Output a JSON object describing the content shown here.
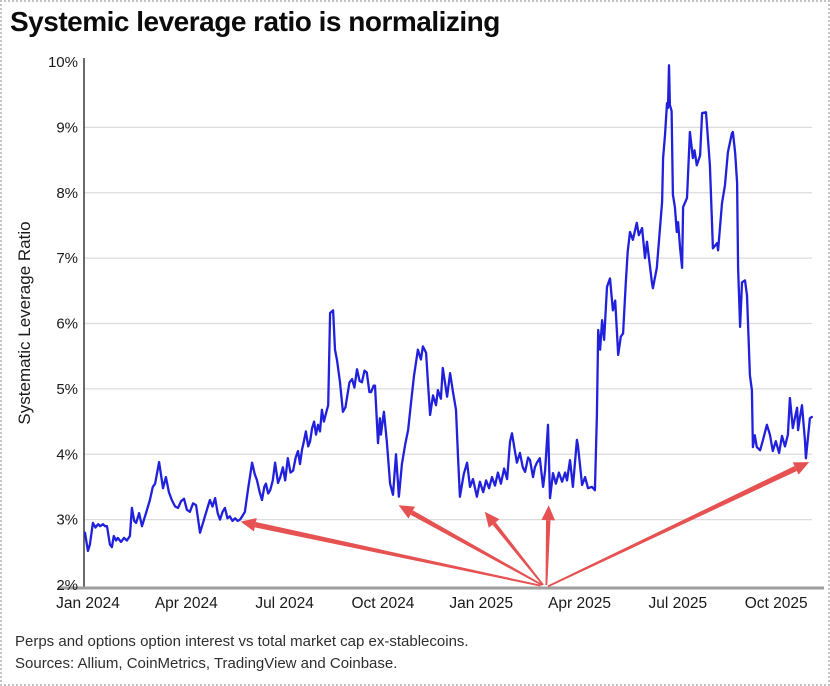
{
  "title": "Systemic leverage ratio is normalizing",
  "footnotes": [
    "Perps and options option interest vs total market cap ex-stablecoins.",
    "Sources: Allium, CoinMetrics, TradingView and Coinbase."
  ],
  "colors": {
    "line": "#2020dd",
    "arrow": "#e65151",
    "grid": "#dcdcdc",
    "y_axis": "#3a3a3a",
    "x_axis": "#9e9e9e",
    "tick_text": "#1a1a1a"
  },
  "chart_data": {
    "type": "line",
    "title": "Systemic leverage ratio is normalizing",
    "xlabel": "",
    "ylabel": "Systematic Leverage Ratio",
    "x_unit": "months since Jan 2024",
    "ylim": [
      2,
      10
    ],
    "xlim": [
      0,
      22.3
    ],
    "grid": "horizontal",
    "legend": "none",
    "y_ticks": [
      {
        "v": 2,
        "label": "2%"
      },
      {
        "v": 3,
        "label": "3%"
      },
      {
        "v": 4,
        "label": "4%"
      },
      {
        "v": 5,
        "label": "5%"
      },
      {
        "v": 6,
        "label": "6%"
      },
      {
        "v": 7,
        "label": "7%"
      },
      {
        "v": 8,
        "label": "8%"
      },
      {
        "v": 9,
        "label": "9%"
      },
      {
        "v": 10,
        "label": "10%"
      }
    ],
    "gridline_values": [
      3,
      4,
      5,
      6,
      7,
      8,
      9
    ],
    "x_ticks": [
      {
        "t": 0,
        "label": "Jan 2024"
      },
      {
        "t": 3,
        "label": "Apr 2024"
      },
      {
        "t": 6,
        "label": "Jul 2024"
      },
      {
        "t": 9,
        "label": "Oct 2024"
      },
      {
        "t": 12,
        "label": "Jan 2025"
      },
      {
        "t": 15,
        "label": "Apr 2025"
      },
      {
        "t": 18,
        "label": "Jul 2025"
      },
      {
        "t": 21,
        "label": "Oct 2025"
      }
    ],
    "series": [
      {
        "name": "Systematic Leverage Ratio",
        "points": [
          [
            0,
            2.8
          ],
          [
            0.09,
            2.52
          ],
          [
            0.15,
            2.62
          ],
          [
            0.24,
            2.95
          ],
          [
            0.32,
            2.88
          ],
          [
            0.4,
            2.93
          ],
          [
            0.46,
            2.9
          ],
          [
            0.55,
            2.93
          ],
          [
            0.61,
            2.9
          ],
          [
            0.67,
            2.9
          ],
          [
            0.76,
            2.62
          ],
          [
            0.82,
            2.58
          ],
          [
            0.88,
            2.75
          ],
          [
            0.95,
            2.68
          ],
          [
            1,
            2.72
          ],
          [
            1.1,
            2.66
          ],
          [
            1.19,
            2.72
          ],
          [
            1.28,
            2.68
          ],
          [
            1.37,
            2.75
          ],
          [
            1.43,
            3.18
          ],
          [
            1.5,
            2.98
          ],
          [
            1.56,
            2.95
          ],
          [
            1.65,
            3.1
          ],
          [
            1.74,
            2.9
          ],
          [
            1.8,
            3
          ],
          [
            1.86,
            3.1
          ],
          [
            1.98,
            3.3
          ],
          [
            2.07,
            3.5
          ],
          [
            2.14,
            3.55
          ],
          [
            2.26,
            3.88
          ],
          [
            2.38,
            3.48
          ],
          [
            2.47,
            3.65
          ],
          [
            2.56,
            3.42
          ],
          [
            2.65,
            3.3
          ],
          [
            2.75,
            3.2
          ],
          [
            2.84,
            3.18
          ],
          [
            2.93,
            3.28
          ],
          [
            3.02,
            3.32
          ],
          [
            3.11,
            3.15
          ],
          [
            3.2,
            3.12
          ],
          [
            3.3,
            3.25
          ],
          [
            3.39,
            3.22
          ],
          [
            3.51,
            2.8
          ],
          [
            3.6,
            2.95
          ],
          [
            3.66,
            3.05
          ],
          [
            3.75,
            3.2
          ],
          [
            3.81,
            3.3
          ],
          [
            3.89,
            3.2
          ],
          [
            3.97,
            3.33
          ],
          [
            4.05,
            3.1
          ],
          [
            4.12,
            3
          ],
          [
            4.2,
            3.12
          ],
          [
            4.27,
            3.18
          ],
          [
            4.35,
            3.02
          ],
          [
            4.42,
            3.05
          ],
          [
            4.5,
            2.98
          ],
          [
            4.58,
            3.02
          ],
          [
            4.66,
            2.98
          ],
          [
            4.73,
            3
          ],
          [
            4.81,
            3.06
          ],
          [
            4.88,
            3.12
          ],
          [
            4.97,
            3.45
          ],
          [
            5.1,
            3.87
          ],
          [
            5.18,
            3.7
          ],
          [
            5.25,
            3.6
          ],
          [
            5.33,
            3.42
          ],
          [
            5.4,
            3.3
          ],
          [
            5.47,
            3.5
          ],
          [
            5.52,
            3.55
          ],
          [
            5.59,
            3.4
          ],
          [
            5.65,
            3.45
          ],
          [
            5.73,
            3.6
          ],
          [
            5.8,
            3.87
          ],
          [
            5.89,
            3.56
          ],
          [
            5.96,
            3.65
          ],
          [
            6.04,
            3.8
          ],
          [
            6.11,
            3.6
          ],
          [
            6.19,
            3.94
          ],
          [
            6.27,
            3.72
          ],
          [
            6.35,
            3.75
          ],
          [
            6.43,
            3.95
          ],
          [
            6.5,
            4.05
          ],
          [
            6.56,
            3.85
          ],
          [
            6.62,
            4.06
          ],
          [
            6.68,
            4.2
          ],
          [
            6.74,
            4.35
          ],
          [
            6.81,
            4.12
          ],
          [
            6.87,
            4.2
          ],
          [
            6.93,
            4.4
          ],
          [
            6.99,
            4.5
          ],
          [
            7.05,
            4.3
          ],
          [
            7.11,
            4.45
          ],
          [
            7.17,
            4.35
          ],
          [
            7.23,
            4.68
          ],
          [
            7.29,
            4.5
          ],
          [
            7.35,
            4.62
          ],
          [
            7.42,
            4.75
          ],
          [
            7.48,
            6.16
          ],
          [
            7.57,
            6.2
          ],
          [
            7.63,
            5.6
          ],
          [
            7.69,
            5.44
          ],
          [
            7.78,
            5.1
          ],
          [
            7.87,
            4.65
          ],
          [
            7.95,
            4.72
          ],
          [
            7.99,
            4.85
          ],
          [
            8.07,
            5.1
          ],
          [
            8.15,
            5.15
          ],
          [
            8.22,
            5.02
          ],
          [
            8.3,
            5.3
          ],
          [
            8.38,
            5.12
          ],
          [
            8.45,
            5.1
          ],
          [
            8.53,
            5.28
          ],
          [
            8.6,
            5.25
          ],
          [
            8.68,
            4.95
          ],
          [
            8.73,
            4.95
          ],
          [
            8.81,
            5.05
          ],
          [
            8.85,
            5.05
          ],
          [
            8.94,
            4.17
          ],
          [
            9,
            4.55
          ],
          [
            9.03,
            4.3
          ],
          [
            9.12,
            4.65
          ],
          [
            9.21,
            4.2
          ],
          [
            9.31,
            3.55
          ],
          [
            9.4,
            3.38
          ],
          [
            9.49,
            4
          ],
          [
            9.58,
            3.35
          ],
          [
            9.67,
            3.85
          ],
          [
            9.77,
            4.15
          ],
          [
            9.86,
            4.37
          ],
          [
            9.95,
            4.8
          ],
          [
            10.04,
            5.2
          ],
          [
            10.16,
            5.6
          ],
          [
            10.25,
            5.45
          ],
          [
            10.31,
            5.65
          ],
          [
            10.41,
            5.55
          ],
          [
            10.47,
            5.06
          ],
          [
            10.53,
            4.6
          ],
          [
            10.62,
            4.9
          ],
          [
            10.71,
            4.75
          ],
          [
            10.77,
            4.98
          ],
          [
            10.86,
            4.85
          ],
          [
            10.92,
            5.32
          ],
          [
            11.05,
            4.88
          ],
          [
            11.14,
            5.24
          ],
          [
            11.23,
            4.95
          ],
          [
            11.32,
            4.68
          ],
          [
            11.38,
            4
          ],
          [
            11.44,
            3.35
          ],
          [
            11.56,
            3.7
          ],
          [
            11.66,
            3.87
          ],
          [
            11.75,
            3.5
          ],
          [
            11.84,
            3.62
          ],
          [
            11.96,
            3.35
          ],
          [
            12.05,
            3.58
          ],
          [
            12.15,
            3.42
          ],
          [
            12.24,
            3.6
          ],
          [
            12.33,
            3.48
          ],
          [
            12.42,
            3.65
          ],
          [
            12.51,
            3.52
          ],
          [
            12.6,
            3.72
          ],
          [
            12.69,
            3.55
          ],
          [
            12.79,
            3.78
          ],
          [
            12.88,
            3.62
          ],
          [
            12.97,
            4.19
          ],
          [
            13.03,
            4.32
          ],
          [
            13.12,
            4.05
          ],
          [
            13.18,
            3.87
          ],
          [
            13.27,
            4.02
          ],
          [
            13.36,
            3.8
          ],
          [
            13.43,
            3.73
          ],
          [
            13.52,
            3.95
          ],
          [
            13.58,
            3.91
          ],
          [
            13.67,
            3.65
          ],
          [
            13.73,
            3.8
          ],
          [
            13.79,
            3.87
          ],
          [
            13.88,
            3.94
          ],
          [
            13.98,
            3.5
          ],
          [
            14.04,
            3.75
          ],
          [
            14.13,
            4.45
          ],
          [
            14.19,
            3.33
          ],
          [
            14.28,
            3.71
          ],
          [
            14.37,
            3.55
          ],
          [
            14.46,
            3.72
          ],
          [
            14.56,
            3.58
          ],
          [
            14.65,
            3.72
          ],
          [
            14.71,
            3.6
          ],
          [
            14.8,
            3.91
          ],
          [
            14.89,
            3.5
          ],
          [
            15.01,
            4.22
          ],
          [
            15.04,
            4.14
          ],
          [
            15.17,
            3.53
          ],
          [
            15.26,
            3.65
          ],
          [
            15.35,
            3.48
          ],
          [
            15.47,
            3.5
          ],
          [
            15.56,
            3.45
          ],
          [
            15.62,
            4.6
          ],
          [
            15.66,
            5.9
          ],
          [
            15.72,
            5.6
          ],
          [
            15.78,
            6.05
          ],
          [
            15.84,
            5.75
          ],
          [
            15.93,
            6.56
          ],
          [
            16.02,
            6.69
          ],
          [
            16.11,
            6.2
          ],
          [
            16.18,
            6.35
          ],
          [
            16.27,
            5.52
          ],
          [
            16.35,
            5.8
          ],
          [
            16.42,
            5.85
          ],
          [
            16.5,
            6.6
          ],
          [
            16.56,
            7.1
          ],
          [
            16.63,
            7.4
          ],
          [
            16.72,
            7.28
          ],
          [
            16.84,
            7.54
          ],
          [
            16.9,
            7.35
          ],
          [
            17,
            7.46
          ],
          [
            17.09,
            7
          ],
          [
            17.15,
            7.25
          ],
          [
            17.3,
            6.63
          ],
          [
            17.33,
            6.54
          ],
          [
            17.45,
            6.85
          ],
          [
            17.61,
            7.86
          ],
          [
            17.64,
            8.53
          ],
          [
            17.7,
            8.88
          ],
          [
            17.76,
            9.37
          ],
          [
            17.79,
            9.3
          ],
          [
            17.82,
            9.95
          ],
          [
            17.85,
            9.34
          ],
          [
            17.9,
            9.25
          ],
          [
            17.94,
            7.97
          ],
          [
            18,
            7.78
          ],
          [
            18.06,
            7.4
          ],
          [
            18.1,
            7.55
          ],
          [
            18.16,
            7.15
          ],
          [
            18.22,
            6.85
          ],
          [
            18.25,
            7.78
          ],
          [
            18.37,
            7.92
          ],
          [
            18.46,
            8.93
          ],
          [
            18.55,
            8.53
          ],
          [
            18.6,
            8.65
          ],
          [
            18.67,
            8.42
          ],
          [
            18.77,
            8.57
          ],
          [
            18.83,
            9.22
          ],
          [
            18.95,
            9.23
          ],
          [
            19.07,
            8.42
          ],
          [
            19.13,
            7.58
          ],
          [
            19.16,
            7.15
          ],
          [
            19.29,
            7.23
          ],
          [
            19.32,
            7.12
          ],
          [
            19.44,
            7.84
          ],
          [
            19.53,
            8.12
          ],
          [
            19.62,
            8.62
          ],
          [
            19.74,
            8.91
          ],
          [
            19.77,
            8.93
          ],
          [
            19.84,
            8.6
          ],
          [
            19.9,
            8.15
          ],
          [
            19.93,
            6.85
          ],
          [
            19.99,
            5.95
          ],
          [
            20.05,
            6.63
          ],
          [
            20.14,
            6.66
          ],
          [
            20.2,
            6.43
          ],
          [
            20.29,
            5.21
          ],
          [
            20.35,
            4.98
          ],
          [
            20.38,
            4.11
          ],
          [
            20.44,
            4.29
          ],
          [
            20.5,
            4.11
          ],
          [
            20.6,
            4.06
          ],
          [
            20.69,
            4.22
          ],
          [
            20.81,
            4.45
          ],
          [
            20.9,
            4.3
          ],
          [
            20.99,
            4.05
          ],
          [
            21.08,
            4.2
          ],
          [
            21.18,
            4.02
          ],
          [
            21.27,
            4.28
          ],
          [
            21.36,
            4.12
          ],
          [
            21.45,
            4.3
          ],
          [
            21.51,
            4.86
          ],
          [
            21.6,
            4.4
          ],
          [
            21.66,
            4.55
          ],
          [
            21.73,
            4.71
          ],
          [
            21.76,
            4.37
          ],
          [
            21.82,
            4.57
          ],
          [
            21.88,
            4.75
          ],
          [
            21.97,
            4.2
          ],
          [
            22,
            3.94
          ],
          [
            22.12,
            4.55
          ],
          [
            22.18,
            4.57
          ]
        ]
      }
    ],
    "annotations": {
      "arrows": [
        {
          "from": [
            13.9,
            1.99
          ],
          "to": [
            4.75,
            2.97
          ],
          "w": 5.5
        },
        {
          "from": [
            13.95,
            2.0
          ],
          "to": [
            9.57,
            3.22
          ],
          "w": 5.0
        },
        {
          "from": [
            13.98,
            2.0
          ],
          "to": [
            12.2,
            3.12
          ],
          "w": 4.0
        },
        {
          "from": [
            14.08,
            2.0
          ],
          "to": [
            14.15,
            3.22
          ],
          "w": 4.5
        },
        {
          "from": [
            14.13,
            1.98
          ],
          "to": [
            22.1,
            3.88
          ],
          "w": 5.5
        }
      ]
    }
  }
}
